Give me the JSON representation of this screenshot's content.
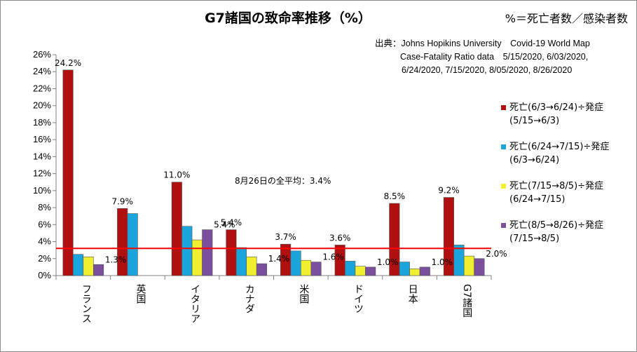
{
  "title": "G7諸国の致命率推移（%）",
  "formula": "%＝死亡者数／感染者数",
  "source": {
    "line1": "出典：Johns Hopikins University　Covid-19 World Map",
    "line2": "Case-Fatality Ratio data　5/15/2020, 6/03/2020,",
    "line3": "6/24/2020, 7/15/2020, 8/05/2020, 8/26/2020"
  },
  "annotation": "8月26日の全平均：3.4%",
  "chart_data": {
    "type": "bar",
    "categories": [
      "フランス",
      "英国",
      "イタリア",
      "カナダ",
      "米国",
      "ドイツ",
      "日本",
      "G7諸国"
    ],
    "series": [
      {
        "name": "死亡(6/3→6/24)÷発症\n(5/15→6/3)",
        "color": "#b01010",
        "values": [
          24.2,
          7.9,
          11.0,
          5.4,
          3.7,
          3.6,
          8.5,
          9.2
        ]
      },
      {
        "name": "死亡(6/24→7/15)÷発症\n(6/3→6/24)",
        "color": "#1aa6dc",
        "values": [
          2.5,
          7.3,
          5.8,
          3.3,
          2.9,
          1.7,
          1.6,
          3.6
        ]
      },
      {
        "name": "死亡(7/15→8/5)÷発症\n(6/24→7/15)",
        "color": "#f0f030",
        "values": [
          2.2,
          null,
          4.2,
          2.2,
          1.8,
          1.1,
          0.8,
          2.3
        ]
      },
      {
        "name": "死亡(8/5→8/26)÷発症\n(7/15→8/5)",
        "color": "#7a4f9e",
        "values": [
          1.3,
          null,
          5.4,
          1.4,
          1.6,
          1.0,
          1.0,
          2.0
        ]
      }
    ],
    "data_labels": [
      {
        "category": 0,
        "series": 0,
        "text": "24.2%"
      },
      {
        "category": 0,
        "series": 3,
        "text": "1.3%"
      },
      {
        "category": 1,
        "series": 0,
        "text": "7.9%"
      },
      {
        "category": 2,
        "series": 0,
        "text": "11.0%"
      },
      {
        "category": 2,
        "series": 3,
        "text": "5.4%"
      },
      {
        "category": 3,
        "series": 0,
        "text": "5.4%"
      },
      {
        "category": 3,
        "series": 3,
        "text": "1.4%"
      },
      {
        "category": 4,
        "series": 0,
        "text": "3.7%"
      },
      {
        "category": 4,
        "series": 3,
        "text": "1.6%"
      },
      {
        "category": 5,
        "series": 0,
        "text": "3.6%"
      },
      {
        "category": 5,
        "series": 3,
        "text": "1.0%"
      },
      {
        "category": 6,
        "series": 0,
        "text": "8.5%"
      },
      {
        "category": 6,
        "series": 3,
        "text": "1.0%"
      },
      {
        "category": 7,
        "series": 0,
        "text": "9.2%"
      },
      {
        "category": 7,
        "series": 3,
        "text": "2.0%"
      }
    ],
    "yticks": [
      "0%",
      "2%",
      "4%",
      "6%",
      "8%",
      "10%",
      "12%",
      "14%",
      "16%",
      "18%",
      "20%",
      "22%",
      "24%",
      "26%"
    ],
    "ylim": [
      0,
      26
    ],
    "reference_line": {
      "value": 3.2,
      "color": "#ff0000"
    },
    "grid": false,
    "legend_position": "right"
  }
}
